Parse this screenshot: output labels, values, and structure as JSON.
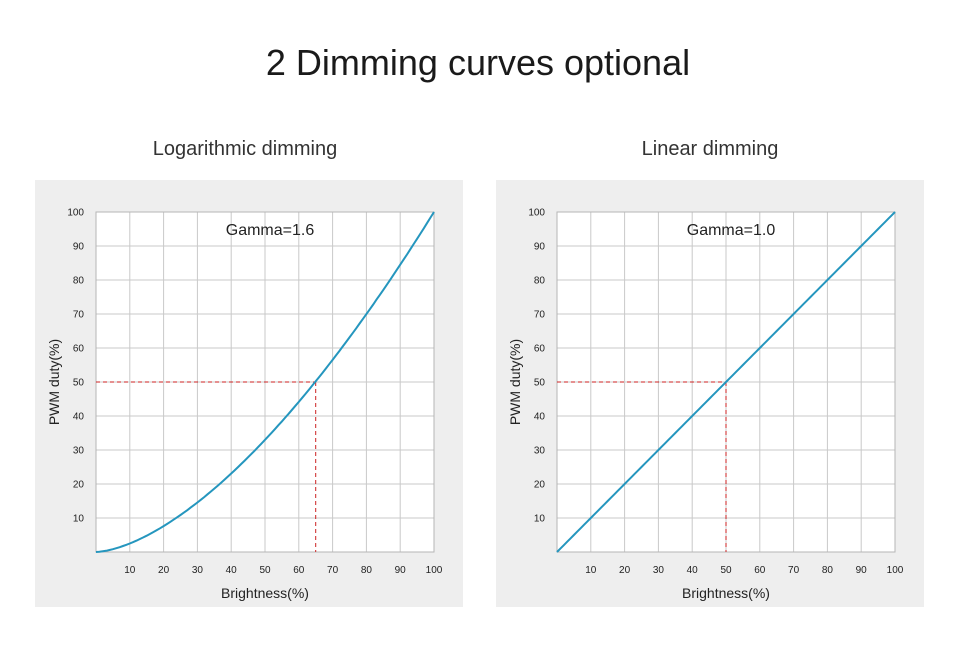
{
  "page": {
    "title": "2 Dimming curves optional"
  },
  "colors": {
    "curve": "#2596be",
    "guide": "#cc2222",
    "grid": "#c9c9c9",
    "plot_bg": "#ffffff",
    "panel_bg": "#eeeeee"
  },
  "chart_data": [
    {
      "type": "line",
      "title": "Logarithmic dimming",
      "annotation": "Gamma=1.6",
      "gamma": 1.6,
      "xlabel": "Brightness(%)",
      "ylabel": "PWM duty(%)",
      "xlim": [
        0,
        100
      ],
      "ylim": [
        0,
        100
      ],
      "grid": true,
      "x_ticks": [
        10,
        20,
        30,
        40,
        50,
        60,
        70,
        80,
        90,
        100
      ],
      "y_ticks": [
        10,
        20,
        30,
        40,
        50,
        60,
        70,
        80,
        90,
        100
      ],
      "series": [
        {
          "x": [
            0,
            10,
            20,
            30,
            40,
            50,
            60,
            65,
            70,
            80,
            90,
            100
          ],
          "y": [
            0,
            2.5,
            7.6,
            14.6,
            23.1,
            33.0,
            44.1,
            50.2,
            56.5,
            70.0,
            84.5,
            100
          ]
        }
      ],
      "guide_point": {
        "x": 65,
        "y": 50
      }
    },
    {
      "type": "line",
      "title": "Linear dimming",
      "annotation": "Gamma=1.0",
      "gamma": 1.0,
      "xlabel": "Brightness(%)",
      "ylabel": "PWM duty(%)",
      "xlim": [
        0,
        100
      ],
      "ylim": [
        0,
        100
      ],
      "grid": true,
      "x_ticks": [
        10,
        20,
        30,
        40,
        50,
        60,
        70,
        80,
        90,
        100
      ],
      "y_ticks": [
        10,
        20,
        30,
        40,
        50,
        60,
        70,
        80,
        90,
        100
      ],
      "series": [
        {
          "x": [
            0,
            10,
            20,
            30,
            40,
            50,
            60,
            70,
            80,
            90,
            100
          ],
          "y": [
            0,
            10,
            20,
            30,
            40,
            50,
            60,
            70,
            80,
            90,
            100
          ]
        }
      ],
      "guide_point": {
        "x": 50,
        "y": 50
      }
    }
  ]
}
